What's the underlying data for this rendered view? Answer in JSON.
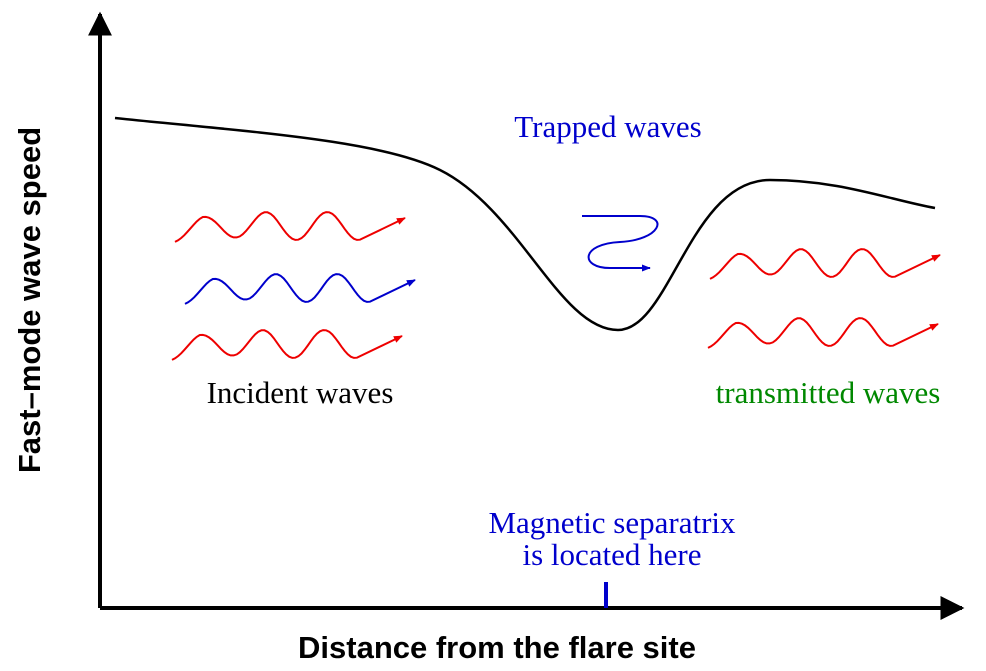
{
  "axes": {
    "x_label": "Distance from the flare site",
    "y_label": "Fast–mode wave speed"
  },
  "labels": {
    "trapped": "Trapped waves",
    "incident": "Incident waves",
    "transmitted": "transmitted waves",
    "separatrix": [
      "Magnetic separatrix",
      "is located here"
    ]
  }
}
